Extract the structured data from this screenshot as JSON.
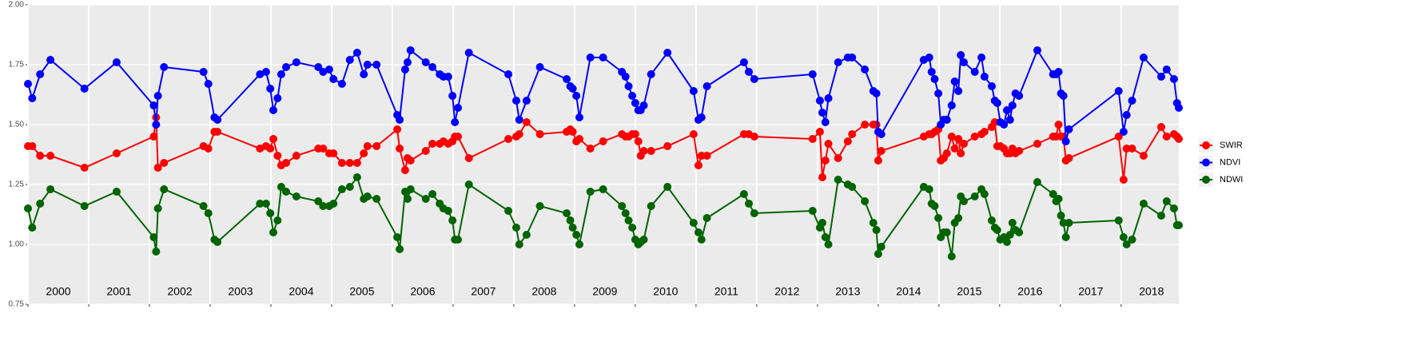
{
  "chart_data": {
    "type": "line",
    "x": [
      2000.0,
      2000.07,
      2000.2,
      2000.37,
      2000.93,
      2001.46,
      2002.07,
      2002.11,
      2002.14,
      2002.24,
      2002.89,
      2002.97,
      2003.07,
      2003.12,
      2003.82,
      2003.92,
      2003.99,
      2004.04,
      2004.11,
      2004.17,
      2004.25,
      2004.42,
      2004.78,
      2004.86,
      2004.96,
      2005.03,
      2005.17,
      2005.3,
      2005.42,
      2005.53,
      2005.59,
      2005.74,
      2006.08,
      2006.12,
      2006.21,
      2006.25,
      2006.3,
      2006.55,
      2006.66,
      2006.78,
      2006.84,
      2006.92,
      2006.99,
      2007.03,
      2007.08,
      2007.26,
      2007.91,
      2008.04,
      2008.09,
      2008.21,
      2008.43,
      2008.87,
      2008.93,
      2008.97,
      2009.03,
      2009.08,
      2009.26,
      2009.47,
      2009.78,
      2009.84,
      2009.89,
      2009.95,
      2010.0,
      2010.05,
      2010.09,
      2010.14,
      2010.26,
      2010.53,
      2010.96,
      2011.04,
      2011.09,
      2011.18,
      2011.79,
      2011.87,
      2011.96,
      2012.92,
      2013.04,
      2013.08,
      2013.13,
      2013.18,
      2013.34,
      2013.5,
      2013.57,
      2013.78,
      2013.92,
      2013.97,
      2014.0,
      2014.05,
      2014.75,
      2014.84,
      2014.88,
      2014.93,
      2014.99,
      2015.03,
      2015.08,
      2015.13,
      2015.21,
      2015.26,
      2015.32,
      2015.36,
      2015.41,
      2015.59,
      2015.7,
      2015.75,
      2015.87,
      2015.92,
      2015.96,
      2016.01,
      2016.07,
      2016.12,
      2016.17,
      2016.21,
      2016.26,
      2016.32,
      2016.62,
      2016.88,
      2016.93,
      2016.97,
      2017.01,
      2017.05,
      2017.09,
      2017.14,
      2017.96,
      2018.04,
      2018.09,
      2018.18,
      2018.37,
      2018.66,
      2018.75,
      2018.87,
      2018.92,
      2018.95
    ],
    "series": [
      {
        "name": "SWIR",
        "color": "#ff0000",
        "values": [
          1.41,
          1.41,
          1.37,
          1.37,
          1.32,
          1.38,
          1.45,
          1.53,
          1.32,
          1.34,
          1.41,
          1.4,
          1.47,
          1.47,
          1.4,
          1.41,
          1.4,
          1.44,
          1.37,
          1.33,
          1.34,
          1.37,
          1.4,
          1.4,
          1.38,
          1.38,
          1.34,
          1.34,
          1.34,
          1.38,
          1.41,
          1.41,
          1.48,
          1.4,
          1.31,
          1.36,
          1.35,
          1.39,
          1.42,
          1.42,
          1.43,
          1.42,
          1.43,
          1.45,
          1.45,
          1.36,
          1.44,
          1.45,
          1.46,
          1.51,
          1.46,
          1.47,
          1.48,
          1.47,
          1.43,
          1.44,
          1.4,
          1.43,
          1.46,
          1.45,
          1.45,
          1.46,
          1.46,
          1.43,
          1.37,
          1.39,
          1.39,
          1.41,
          1.46,
          1.33,
          1.37,
          1.37,
          1.46,
          1.46,
          1.45,
          1.44,
          1.47,
          1.28,
          1.35,
          1.42,
          1.36,
          1.43,
          1.46,
          1.5,
          1.5,
          1.5,
          1.35,
          1.39,
          1.45,
          1.46,
          1.46,
          1.47,
          1.48,
          1.35,
          1.36,
          1.38,
          1.45,
          1.4,
          1.44,
          1.38,
          1.42,
          1.45,
          1.46,
          1.47,
          1.49,
          1.51,
          1.41,
          1.41,
          1.4,
          1.38,
          1.38,
          1.4,
          1.38,
          1.39,
          1.42,
          1.45,
          1.45,
          1.5,
          1.45,
          1.45,
          1.35,
          1.36,
          1.45,
          1.27,
          1.4,
          1.4,
          1.37,
          1.49,
          1.45,
          1.46,
          1.45,
          1.44
        ]
      },
      {
        "name": "NDVI",
        "color": "#0000ff",
        "values": [
          1.67,
          1.61,
          1.71,
          1.77,
          1.65,
          1.76,
          1.58,
          1.5,
          1.62,
          1.74,
          1.72,
          1.67,
          1.53,
          1.52,
          1.71,
          1.72,
          1.65,
          1.56,
          1.61,
          1.71,
          1.74,
          1.76,
          1.74,
          1.72,
          1.73,
          1.69,
          1.67,
          1.77,
          1.8,
          1.71,
          1.75,
          1.75,
          1.54,
          1.52,
          1.73,
          1.76,
          1.81,
          1.76,
          1.74,
          1.71,
          1.7,
          1.7,
          1.62,
          1.51,
          1.57,
          1.8,
          1.71,
          1.6,
          1.52,
          1.6,
          1.74,
          1.69,
          1.66,
          1.65,
          1.62,
          1.53,
          1.78,
          1.78,
          1.72,
          1.7,
          1.66,
          1.62,
          1.59,
          1.56,
          1.56,
          1.58,
          1.71,
          1.8,
          1.64,
          1.52,
          1.53,
          1.66,
          1.76,
          1.72,
          1.69,
          1.71,
          1.6,
          1.55,
          1.51,
          1.61,
          1.76,
          1.78,
          1.78,
          1.73,
          1.64,
          1.63,
          1.47,
          1.46,
          1.77,
          1.78,
          1.72,
          1.69,
          1.63,
          1.5,
          1.52,
          1.52,
          1.58,
          1.68,
          1.64,
          1.79,
          1.76,
          1.72,
          1.78,
          1.7,
          1.66,
          1.6,
          1.59,
          1.51,
          1.5,
          1.56,
          1.52,
          1.58,
          1.63,
          1.62,
          1.81,
          1.71,
          1.71,
          1.72,
          1.63,
          1.62,
          1.43,
          1.48,
          1.64,
          1.47,
          1.54,
          1.6,
          1.78,
          1.7,
          1.73,
          1.69,
          1.59,
          1.57
        ]
      },
      {
        "name": "NDWI",
        "color": "#006400",
        "values": [
          1.15,
          1.07,
          1.17,
          1.23,
          1.16,
          1.22,
          1.03,
          0.97,
          1.15,
          1.23,
          1.16,
          1.13,
          1.02,
          1.01,
          1.17,
          1.17,
          1.13,
          1.05,
          1.1,
          1.24,
          1.22,
          1.2,
          1.18,
          1.16,
          1.16,
          1.17,
          1.23,
          1.24,
          1.28,
          1.19,
          1.2,
          1.19,
          1.03,
          0.98,
          1.22,
          1.19,
          1.23,
          1.19,
          1.21,
          1.17,
          1.15,
          1.14,
          1.1,
          1.02,
          1.02,
          1.25,
          1.14,
          1.07,
          1.0,
          1.04,
          1.16,
          1.13,
          1.1,
          1.07,
          1.04,
          1.0,
          1.22,
          1.23,
          1.16,
          1.13,
          1.1,
          1.07,
          1.02,
          1.0,
          1.01,
          1.02,
          1.16,
          1.24,
          1.09,
          1.05,
          1.02,
          1.11,
          1.21,
          1.17,
          1.13,
          1.14,
          1.07,
          1.09,
          1.03,
          1.0,
          1.27,
          1.25,
          1.24,
          1.18,
          1.09,
          1.06,
          0.96,
          0.99,
          1.24,
          1.23,
          1.17,
          1.16,
          1.11,
          1.03,
          1.05,
          1.05,
          0.95,
          1.09,
          1.11,
          1.2,
          1.18,
          1.2,
          1.23,
          1.21,
          1.1,
          1.07,
          1.06,
          1.02,
          1.03,
          1.01,
          1.04,
          1.09,
          1.06,
          1.05,
          1.26,
          1.21,
          1.18,
          1.19,
          1.12,
          1.09,
          1.03,
          1.09,
          1.1,
          1.03,
          1.0,
          1.02,
          1.17,
          1.12,
          1.18,
          1.15,
          1.08,
          1.08
        ]
      }
    ],
    "xlim": [
      2000,
      2018.95
    ],
    "ylim": [
      0.75,
      2.0
    ],
    "yticks": [
      {
        "value": 0.75,
        "label": "0.75"
      },
      {
        "value": 1.0,
        "label": "1.00"
      },
      {
        "value": 1.25,
        "label": "1.25"
      },
      {
        "value": 1.5,
        "label": "1.50"
      },
      {
        "value": 1.75,
        "label": "1.75"
      },
      {
        "value": 2.0,
        "label": "2.00"
      }
    ],
    "xticks": [
      {
        "value": 2000,
        "label": "2000"
      },
      {
        "value": 2001,
        "label": "2001"
      },
      {
        "value": 2002,
        "label": "2002"
      },
      {
        "value": 2003,
        "label": "2003"
      },
      {
        "value": 2004,
        "label": "2004"
      },
      {
        "value": 2005,
        "label": "2005"
      },
      {
        "value": 2006,
        "label": "2006"
      },
      {
        "value": 2007,
        "label": "2007"
      },
      {
        "value": 2008,
        "label": "2008"
      },
      {
        "value": 2009,
        "label": "2009"
      },
      {
        "value": 2010,
        "label": "2010"
      },
      {
        "value": 2011,
        "label": "2011"
      },
      {
        "value": 2012,
        "label": "2012"
      },
      {
        "value": 2013,
        "label": "2013"
      },
      {
        "value": 2014,
        "label": "2014"
      },
      {
        "value": 2015,
        "label": "2015"
      },
      {
        "value": 2016,
        "label": "2016"
      },
      {
        "value": 2017,
        "label": "2017"
      },
      {
        "value": 2018,
        "label": "2018"
      }
    ],
    "grid": true,
    "legend": "right"
  }
}
